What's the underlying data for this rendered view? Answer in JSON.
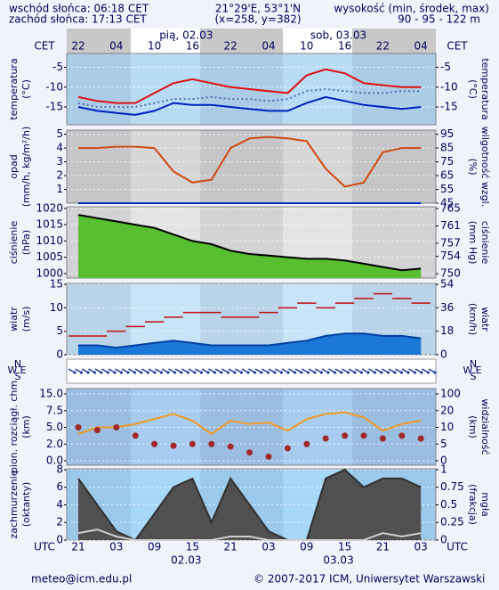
{
  "header": {
    "sunrise": "wschód słońca: 06:18 CET",
    "sunset": "zachód słońca: 17:13 CET",
    "coords": "21°29'E, 53°1'N",
    "grid_point": "(x=258, y=382)",
    "height_title": "wysokość (min, środek, max)",
    "heights": "90 - 95 - 122 m"
  },
  "footer": {
    "email": "meteo@icm.edu.pl",
    "copyright": "© 2007-2017 ICM, Uniwersytet Warszawski"
  },
  "compass": [
    "W",
    "N",
    "E",
    "S"
  ],
  "time_axis": {
    "top_label": "CET",
    "top_ticks": [
      "22",
      null,
      "04",
      null,
      "10",
      null,
      "16",
      null,
      "22",
      null,
      "04",
      null,
      "10",
      null,
      "16",
      null,
      "22",
      null,
      "04"
    ],
    "top_dates": [
      "pią, 02.03",
      "sob, 03.03"
    ],
    "bottom_label": "UTC",
    "bottom_ticks": [
      "21",
      null,
      "03",
      null,
      "09",
      null,
      "15",
      null,
      "21",
      null,
      "03",
      null,
      "09",
      null,
      "15",
      null,
      "21",
      null,
      "03"
    ],
    "bottom_dates": [
      "02.03",
      "03.03"
    ]
  },
  "chart_data": [
    {
      "type": "line",
      "ylabel": [
        "temperatura",
        "(°C)"
      ],
      "y2label": [
        "temperatura",
        "(°C)"
      ],
      "background": "#b8dcf5",
      "ylim": [
        -19.5,
        -1.5
      ],
      "yticks": [
        -5,
        -10,
        -15
      ],
      "y2lim": [
        -19.5,
        -1.5
      ],
      "y2ticks": [
        -5,
        -10,
        -15
      ],
      "grid": true,
      "series": [
        {
          "type": "dotted",
          "color": "#5070b0",
          "values": [
            -14,
            -15,
            -15,
            -15,
            -14,
            -13,
            -13,
            -12.5,
            -13,
            -13,
            -13.5,
            -13,
            -11,
            -10.5,
            -11,
            -11.5,
            -11.5,
            -11,
            -11
          ]
        },
        {
          "type": "line",
          "color": "#0020c0",
          "values": [
            -15,
            -16,
            -16.5,
            -17,
            -16,
            -14,
            -14.5,
            -14.5,
            -15,
            -15.5,
            -16,
            -16,
            -14,
            -12.5,
            -13.5,
            -14.5,
            -15,
            -15.5,
            -15
          ]
        },
        {
          "type": "line",
          "color": "#e01010",
          "values": [
            -12.5,
            -13.5,
            -14,
            -14,
            -11.5,
            -9,
            -8,
            -9,
            -10,
            -10.5,
            -11,
            -11.5,
            -7,
            -5.5,
            -6.5,
            -9,
            -9.5,
            -10,
            -10
          ]
        }
      ]
    },
    {
      "type": "line",
      "ylabel": [
        "opad",
        "(mm/h, kg/m²/h)"
      ],
      "y2label": [
        "wilgotność wzgl.",
        "(%)"
      ],
      "background": "#d6d6d6",
      "ylim": [
        0,
        5.3
      ],
      "yticks": [
        5,
        4,
        3,
        2,
        1
      ],
      "y2lim": [
        45,
        98
      ],
      "y2ticks": [
        95,
        85,
        75,
        65,
        55,
        45
      ],
      "y2color": "#c04000",
      "grid": true,
      "series": [
        {
          "type": "line",
          "color": "#0030c0",
          "values": [
            0,
            0,
            0,
            0,
            0,
            0,
            0,
            0,
            0,
            0,
            0,
            0,
            0,
            0,
            0,
            0,
            0,
            0,
            0
          ]
        },
        {
          "type": "line",
          "axis": "y2",
          "color": "#d04a10",
          "values": [
            85,
            85,
            86,
            86,
            85,
            68,
            60,
            62,
            85,
            92,
            93,
            92,
            90,
            70,
            57,
            60,
            82,
            85,
            85
          ]
        }
      ]
    },
    {
      "type": "area",
      "ylabel": [
        "ciśnienie",
        "(hPa)"
      ],
      "y2label": [
        "ciśnienie",
        "(mm Hg)"
      ],
      "background": "#e4e4e4",
      "ylim": [
        998.6,
        1020.5
      ],
      "yticks": [
        1020,
        1015,
        1010,
        1005,
        1000
      ],
      "y2lim": [
        749,
        765.4
      ],
      "y2ticks": [
        765,
        761,
        757,
        754,
        750
      ],
      "grid": true,
      "series": [
        {
          "type": "area",
          "color": "#000000",
          "fill": "#58c030",
          "values": [
            1018,
            1017,
            1016,
            1015,
            1014,
            1012,
            1010,
            1009,
            1007,
            1006,
            1005.5,
            1005,
            1004.5,
            1004.5,
            1004,
            1003,
            1002,
            1001,
            1001.5
          ]
        }
      ]
    },
    {
      "type": "area",
      "ylabel": [
        "wiatr",
        "(m/s)"
      ],
      "y2label": [
        "wiatr",
        "(km/h)"
      ],
      "background": "#c8e4f8",
      "ylim": [
        0,
        15.2
      ],
      "yticks": [
        15,
        10,
        5,
        0
      ],
      "y2lim": [
        0,
        54.7
      ],
      "y2ticks": [
        54,
        36,
        18,
        0
      ],
      "grid": true,
      "series": [
        {
          "type": "area",
          "color": "#0040a0",
          "fill": "#1c78d8",
          "values": [
            2,
            2,
            1.5,
            2,
            2.5,
            3,
            2.5,
            2,
            2,
            2,
            2,
            2.5,
            3,
            4,
            4.5,
            4.5,
            4,
            4,
            3.5
          ]
        },
        {
          "type": "step",
          "color": "#c01010",
          "values": [
            4,
            4,
            5,
            6,
            7,
            8,
            9,
            9,
            8,
            8,
            9,
            10,
            11,
            10,
            11,
            12,
            13,
            12,
            11
          ]
        }
      ]
    },
    {
      "type": "scatter",
      "ylabel": [
        "pion. rozciągł. chm",
        "(km)"
      ],
      "y2label": [
        "widzialność",
        "(km)"
      ],
      "background": "#a8ccf0",
      "yscale": "piecewise",
      "ylim": [
        0,
        15
      ],
      "yticks": [
        {
          "value": 15,
          "label": "15.0"
        },
        {
          "value": 7.5,
          "label": "7.5"
        },
        {
          "value": 5,
          "label": "5.0"
        },
        {
          "value": 2,
          "label": "2.0"
        },
        {
          "value": 0,
          "label": "0.0"
        }
      ],
      "y2scale": "piecewise",
      "y2lim": [
        0,
        100
      ],
      "y2ticks": [
        100,
        20,
        10,
        5,
        0
      ],
      "y2color": "#c04000",
      "grid": true,
      "series": [
        {
          "type": "line",
          "axis": "y2",
          "color": "#f09a20",
          "values": [
            8,
            10,
            10,
            12,
            15,
            18,
            14,
            8,
            14,
            12,
            13,
            9,
            15,
            18,
            19,
            16,
            9,
            12,
            14
          ]
        },
        {
          "type": "dots",
          "color": "#a02828",
          "values": [
            5,
            4.5,
            5,
            3.5,
            2,
            1.8,
            2,
            2,
            1.7,
            1,
            0.5,
            1.5,
            2,
            3,
            3.5,
            3.5,
            3,
            3.5,
            3
          ]
        }
      ]
    },
    {
      "type": "area",
      "ylabel": [
        "zachmurzenie",
        "(oktanty)"
      ],
      "y2label": [
        "mgła",
        "(frakcja)"
      ],
      "background": "#a8d8f8",
      "ylim": [
        0,
        8.1
      ],
      "yticks": [
        8,
        6,
        4,
        2,
        0
      ],
      "y2lim": [
        0,
        1.0125
      ],
      "y2ticks": [
        1,
        0.75,
        0.5,
        0.25,
        0
      ],
      "grid": true,
      "series": [
        {
          "type": "area",
          "color": "#303030",
          "fill": "#505050",
          "values": [
            7,
            4,
            1,
            0,
            3,
            6,
            7,
            2,
            7,
            4,
            1,
            0,
            0,
            7,
            8,
            6,
            7,
            7,
            6
          ]
        },
        {
          "type": "line",
          "axis": "y2",
          "color": "#d0d0d0",
          "values": [
            0.1,
            0.15,
            0.05,
            0,
            0,
            0,
            0,
            0,
            0.05,
            0.05,
            0,
            0,
            0,
            0,
            0,
            0,
            0.1,
            0.05,
            0.1
          ]
        }
      ]
    }
  ]
}
